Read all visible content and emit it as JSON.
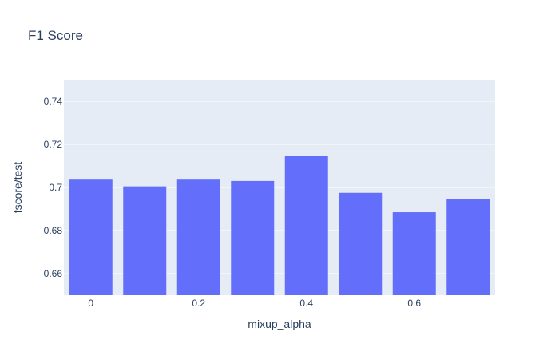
{
  "chart_data": {
    "type": "bar",
    "title": "F1 Score",
    "xlabel": "mixup_alpha",
    "ylabel": "fscore/test",
    "x": [
      0,
      0.1,
      0.2,
      0.3,
      0.4,
      0.5,
      0.6,
      0.7
    ],
    "values": [
      0.704,
      0.7005,
      0.704,
      0.703,
      0.7145,
      0.6975,
      0.6885,
      0.6948
    ],
    "xlim": [
      -0.05,
      0.75
    ],
    "ylim": [
      0.65,
      0.75
    ],
    "xticks": [
      0,
      0.2,
      0.4,
      0.6
    ],
    "xtick_labels": [
      "0",
      "0.2",
      "0.4",
      "0.6"
    ],
    "yticks": [
      0.66,
      0.68,
      0.7,
      0.72,
      0.74
    ],
    "ytick_labels": [
      "0.66",
      "0.68",
      "0.7",
      "0.72",
      "0.74"
    ],
    "grid": true,
    "colors": {
      "bar": "#636efa",
      "plot_bg": "#e5ecf6",
      "grid": "#ffffff",
      "text": "#2a3f5f"
    }
  }
}
